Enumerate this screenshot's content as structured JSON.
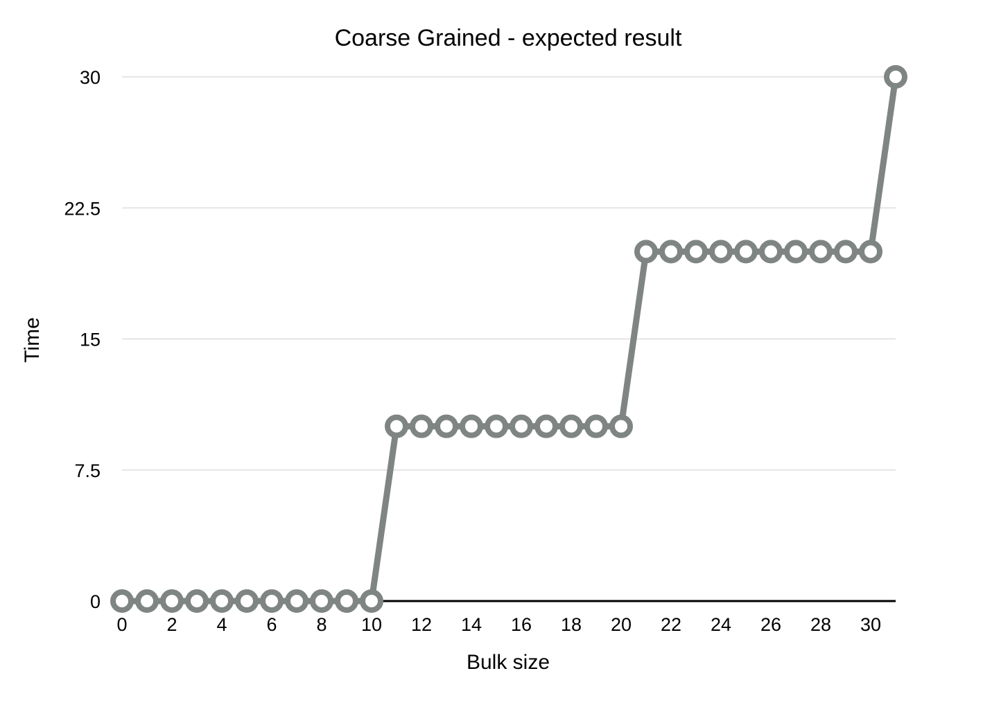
{
  "chart_data": {
    "type": "line",
    "title": "Coarse Grained - expected result",
    "xlabel": "Bulk size",
    "ylabel": "Time",
    "xlim": [
      0,
      31
    ],
    "ylim": [
      0,
      30
    ],
    "x_ticks": [
      0,
      2,
      4,
      6,
      8,
      10,
      12,
      14,
      16,
      18,
      20,
      22,
      24,
      26,
      28,
      30
    ],
    "y_ticks": [
      0,
      7.5,
      15,
      22.5,
      30
    ],
    "y_tick_labels": [
      "0",
      "7.5",
      "15",
      "22.5",
      "30"
    ],
    "grid": "horizontal",
    "legend": "none",
    "series": [
      {
        "color": "#7f8582",
        "x": [
          0,
          1,
          2,
          3,
          4,
          5,
          6,
          7,
          8,
          9,
          10,
          11,
          12,
          13,
          14,
          15,
          16,
          17,
          18,
          19,
          20,
          21,
          22,
          23,
          24,
          25,
          26,
          27,
          28,
          29,
          30,
          31
        ],
        "values": [
          0,
          0,
          0,
          0,
          0,
          0,
          0,
          0,
          0,
          0,
          0,
          10,
          10,
          10,
          10,
          10,
          10,
          10,
          10,
          10,
          10,
          20,
          20,
          20,
          20,
          20,
          20,
          20,
          20,
          20,
          20,
          30
        ]
      }
    ]
  }
}
